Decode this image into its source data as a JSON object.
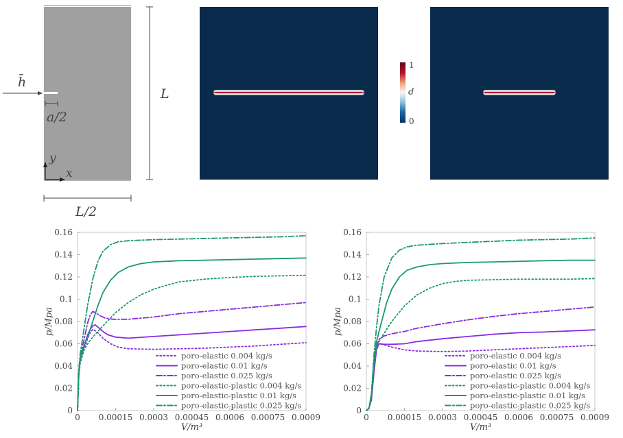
{
  "schematic": {
    "flux_label": "h̄",
    "notch_label": "a/2",
    "height_label": "L",
    "width_label": "L/2",
    "x_axis_label": "x",
    "y_axis_label": "y"
  },
  "colorbar": {
    "max": "1",
    "min": "0",
    "label": "d"
  },
  "colors": {
    "field_background": "#0a2a4c",
    "crack_core": "#b2182b",
    "poro_elastic": "#8a2be2",
    "poro_elastic_plastic": "#1a9a6a",
    "specimen_gray": "#a0a0a0"
  },
  "chart_data": [
    {
      "type": "line",
      "xlabel": "V/m³",
      "ylabel": "p/Mpa",
      "xlim": [
        0,
        0.0009
      ],
      "ylim": [
        0,
        0.16
      ],
      "xticks": [
        "0",
        "0.00015",
        "0.0003",
        "0.00045",
        "0.0006",
        "0.00075",
        "0.0009"
      ],
      "yticks": [
        "0",
        "0.02",
        "0.04",
        "0.06",
        "0.08",
        "0.1",
        "0.12",
        "0.14",
        "0.16"
      ],
      "legend_position": "bottom-right",
      "series": [
        {
          "name": "poro-elastic 0.004 kg/s",
          "color": "#8a2be2",
          "dash": "dotted",
          "points": [
            [
              0,
              0
            ],
            [
              5e-06,
              0.03
            ],
            [
              1e-05,
              0.042
            ],
            [
              2e-05,
              0.05
            ],
            [
              3e-05,
              0.058
            ],
            [
              4e-05,
              0.065
            ],
            [
              5e-05,
              0.07
            ],
            [
              6e-05,
              0.073
            ],
            [
              8e-05,
              0.07
            ],
            [
              0.0001,
              0.065
            ],
            [
              0.00013,
              0.06
            ],
            [
              0.00016,
              0.057
            ],
            [
              0.0002,
              0.0555
            ],
            [
              0.0003,
              0.055
            ],
            [
              0.0004,
              0.0555
            ],
            [
              0.0005,
              0.056
            ],
            [
              0.0006,
              0.057
            ],
            [
              0.0007,
              0.058
            ],
            [
              0.0008,
              0.0595
            ],
            [
              0.0009,
              0.061
            ]
          ]
        },
        {
          "name": "poro-elastic 0.01 kg/s",
          "color": "#8a2be2",
          "dash": "solid",
          "points": [
            [
              0,
              0
            ],
            [
              5e-06,
              0.032
            ],
            [
              1e-05,
              0.045
            ],
            [
              2e-05,
              0.053
            ],
            [
              3e-05,
              0.061
            ],
            [
              4e-05,
              0.068
            ],
            [
              5e-05,
              0.073
            ],
            [
              6e-05,
              0.076
            ],
            [
              7e-05,
              0.077
            ],
            [
              8e-05,
              0.075
            ],
            [
              0.0001,
              0.071
            ],
            [
              0.00012,
              0.068
            ],
            [
              0.00015,
              0.066
            ],
            [
              0.0002,
              0.065
            ],
            [
              0.0003,
              0.0665
            ],
            [
              0.0004,
              0.068
            ],
            [
              0.0005,
              0.0695
            ],
            [
              0.0006,
              0.071
            ],
            [
              0.0007,
              0.0725
            ],
            [
              0.0008,
              0.074
            ],
            [
              0.0009,
              0.0755
            ]
          ]
        },
        {
          "name": "poro-elastic 0.025 kg/s",
          "color": "#8a2be2",
          "dash": "dashdot",
          "points": [
            [
              0,
              0
            ],
            [
              5e-06,
              0.035
            ],
            [
              1e-05,
              0.048
            ],
            [
              2e-05,
              0.058
            ],
            [
              3e-05,
              0.068
            ],
            [
              4e-05,
              0.079
            ],
            [
              5e-05,
              0.086
            ],
            [
              6e-05,
              0.089
            ],
            [
              7e-05,
              0.088
            ],
            [
              9e-05,
              0.085
            ],
            [
              0.00011,
              0.083
            ],
            [
              0.00014,
              0.082
            ],
            [
              0.0002,
              0.082
            ],
            [
              0.0003,
              0.084
            ],
            [
              0.0004,
              0.087
            ],
            [
              0.0005,
              0.089
            ],
            [
              0.0006,
              0.091
            ],
            [
              0.0007,
              0.093
            ],
            [
              0.0008,
              0.095
            ],
            [
              0.0009,
              0.097
            ]
          ]
        },
        {
          "name": "poro-elastic-plastic 0.004 kg/s",
          "color": "#1a9a6a",
          "dash": "dotted",
          "points": [
            [
              0,
              0
            ],
            [
              5e-06,
              0.03
            ],
            [
              1e-05,
              0.043
            ],
            [
              2e-05,
              0.052
            ],
            [
              4e-05,
              0.06
            ],
            [
              6e-05,
              0.066
            ],
            [
              0.0001,
              0.076
            ],
            [
              0.00015,
              0.088
            ],
            [
              0.0002,
              0.097
            ],
            [
              0.00025,
              0.104
            ],
            [
              0.0003,
              0.109
            ],
            [
              0.00035,
              0.1125
            ],
            [
              0.0004,
              0.1155
            ],
            [
              0.0005,
              0.118
            ],
            [
              0.0006,
              0.1195
            ],
            [
              0.0007,
              0.1205
            ],
            [
              0.0008,
              0.121
            ],
            [
              0.0009,
              0.1215
            ]
          ]
        },
        {
          "name": "poro-elastic-plastic 0.01 kg/s",
          "color": "#1a9a6a",
          "dash": "solid",
          "points": [
            [
              0,
              0
            ],
            [
              5e-06,
              0.032
            ],
            [
              1e-05,
              0.045
            ],
            [
              2e-05,
              0.055
            ],
            [
              4e-05,
              0.066
            ],
            [
              6e-05,
              0.08
            ],
            [
              8e-05,
              0.094
            ],
            [
              0.0001,
              0.106
            ],
            [
              0.00013,
              0.117
            ],
            [
              0.00016,
              0.124
            ],
            [
              0.0002,
              0.129
            ],
            [
              0.00025,
              0.132
            ],
            [
              0.0003,
              0.1335
            ],
            [
              0.0004,
              0.1345
            ],
            [
              0.0005,
              0.135
            ],
            [
              0.0006,
              0.1355
            ],
            [
              0.0007,
              0.136
            ],
            [
              0.0008,
              0.1365
            ],
            [
              0.0009,
              0.137
            ]
          ]
        },
        {
          "name": "poro-elastic-plastic 0.025 kg/s",
          "color": "#1a9a6a",
          "dash": "dashdot",
          "points": [
            [
              0,
              0
            ],
            [
              5e-06,
              0.035
            ],
            [
              1e-05,
              0.05
            ],
            [
              2e-05,
              0.065
            ],
            [
              3e-05,
              0.08
            ],
            [
              4e-05,
              0.095
            ],
            [
              6e-05,
              0.118
            ],
            [
              8e-05,
              0.134
            ],
            [
              0.0001,
              0.143
            ],
            [
              0.00013,
              0.149
            ],
            [
              0.00016,
              0.1515
            ],
            [
              0.0002,
              0.1525
            ],
            [
              0.0003,
              0.1535
            ],
            [
              0.0004,
              0.154
            ],
            [
              0.0005,
              0.1545
            ],
            [
              0.0006,
              0.155
            ],
            [
              0.0007,
              0.1555
            ],
            [
              0.0008,
              0.156
            ],
            [
              0.0009,
              0.157
            ]
          ]
        }
      ]
    },
    {
      "type": "line",
      "xlabel": "V/m³",
      "ylabel": "p/Mpa",
      "xlim": [
        0,
        0.0009
      ],
      "ylim": [
        0,
        0.16
      ],
      "xticks": [
        "0",
        "0.00015",
        "0.0003",
        "0.00045",
        "0.0006",
        "0.00075",
        "0.0009"
      ],
      "yticks": [
        "0",
        "0.02",
        "0.04",
        "0.06",
        "0.08",
        "0.1",
        "0.12",
        "0.14",
        "0.16"
      ],
      "legend_position": "bottom-right",
      "series": [
        {
          "name": "poro-elastic 0.004 kg/s",
          "color": "#8a2be2",
          "dash": "dotted",
          "points": [
            [
              0,
              0
            ],
            [
              1e-05,
              0.002
            ],
            [
              2e-05,
              0.01
            ],
            [
              3e-05,
              0.035
            ],
            [
              4e-05,
              0.055
            ],
            [
              5e-05,
              0.06
            ],
            [
              7e-05,
              0.059
            ],
            [
              0.0001,
              0.057
            ],
            [
              0.00015,
              0.0545
            ],
            [
              0.0002,
              0.0535
            ],
            [
              0.0003,
              0.053
            ],
            [
              0.0004,
              0.0535
            ],
            [
              0.0005,
              0.0545
            ],
            [
              0.0006,
              0.0555
            ],
            [
              0.0007,
              0.0565
            ],
            [
              0.0008,
              0.0575
            ],
            [
              0.0009,
              0.0585
            ]
          ]
        },
        {
          "name": "poro-elastic 0.01 kg/s",
          "color": "#8a2be2",
          "dash": "solid",
          "points": [
            [
              0,
              0
            ],
            [
              1e-05,
              0.002
            ],
            [
              2e-05,
              0.01
            ],
            [
              3e-05,
              0.035
            ],
            [
              4e-05,
              0.055
            ],
            [
              5e-05,
              0.06
            ],
            [
              7e-05,
              0.0595
            ],
            [
              0.0001,
              0.0595
            ],
            [
              0.00015,
              0.06
            ],
            [
              0.0002,
              0.062
            ],
            [
              0.0003,
              0.0645
            ],
            [
              0.0004,
              0.0665
            ],
            [
              0.0005,
              0.0685
            ],
            [
              0.0006,
              0.07
            ],
            [
              0.0007,
              0.0705
            ],
            [
              0.0008,
              0.0715
            ],
            [
              0.0009,
              0.0725
            ]
          ]
        },
        {
          "name": "poro-elastic 0.025 kg/s",
          "color": "#8a2be2",
          "dash": "dashdot",
          "points": [
            [
              0,
              0
            ],
            [
              1e-05,
              0.002
            ],
            [
              2e-05,
              0.012
            ],
            [
              3e-05,
              0.04
            ],
            [
              4e-05,
              0.058
            ],
            [
              5e-05,
              0.064
            ],
            [
              7e-05,
              0.067
            ],
            [
              0.0001,
              0.069
            ],
            [
              0.00015,
              0.071
            ],
            [
              0.0002,
              0.074
            ],
            [
              0.0003,
              0.078
            ],
            [
              0.0004,
              0.0815
            ],
            [
              0.0005,
              0.0845
            ],
            [
              0.0006,
              0.087
            ],
            [
              0.0007,
              0.089
            ],
            [
              0.0008,
              0.091
            ],
            [
              0.0009,
              0.093
            ]
          ]
        },
        {
          "name": "poro-elastic-plastic 0.004 kg/s",
          "color": "#1a9a6a",
          "dash": "dotted",
          "points": [
            [
              0,
              0
            ],
            [
              1e-05,
              0.002
            ],
            [
              2e-05,
              0.012
            ],
            [
              3e-05,
              0.04
            ],
            [
              4e-05,
              0.058
            ],
            [
              6e-05,
              0.066
            ],
            [
              0.0001,
              0.08
            ],
            [
              0.00015,
              0.094
            ],
            [
              0.0002,
              0.104
            ],
            [
              0.00025,
              0.11
            ],
            [
              0.0003,
              0.114
            ],
            [
              0.00035,
              0.116
            ],
            [
              0.0004,
              0.117
            ],
            [
              0.0005,
              0.1175
            ],
            [
              0.0006,
              0.118
            ],
            [
              0.0007,
              0.118
            ],
            [
              0.0008,
              0.118
            ],
            [
              0.0009,
              0.1185
            ]
          ]
        },
        {
          "name": "poro-elastic-plastic 0.01 kg/s",
          "color": "#1a9a6a",
          "dash": "solid",
          "points": [
            [
              0,
              0
            ],
            [
              1e-05,
              0.002
            ],
            [
              2e-05,
              0.014
            ],
            [
              3e-05,
              0.045
            ],
            [
              4e-05,
              0.062
            ],
            [
              6e-05,
              0.08
            ],
            [
              8e-05,
              0.097
            ],
            [
              0.0001,
              0.109
            ],
            [
              0.00013,
              0.12
            ],
            [
              0.00016,
              0.126
            ],
            [
              0.0002,
              0.129
            ],
            [
              0.00025,
              0.131
            ],
            [
              0.0003,
              0.132
            ],
            [
              0.0004,
              0.133
            ],
            [
              0.0005,
              0.1335
            ],
            [
              0.0006,
              0.134
            ],
            [
              0.0007,
              0.1345
            ],
            [
              0.0008,
              0.135
            ],
            [
              0.0009,
              0.135
            ]
          ]
        },
        {
          "name": "poro-elastic-plastic 0.025 kg/s",
          "color": "#1a9a6a",
          "dash": "dashdot",
          "points": [
            [
              0,
              0
            ],
            [
              1e-05,
              0.002
            ],
            [
              2e-05,
              0.016
            ],
            [
              3e-05,
              0.05
            ],
            [
              4e-05,
              0.075
            ],
            [
              5e-05,
              0.095
            ],
            [
              7e-05,
              0.12
            ],
            [
              0.0001,
              0.137
            ],
            [
              0.00013,
              0.144
            ],
            [
              0.00016,
              0.147
            ],
            [
              0.0002,
              0.1485
            ],
            [
              0.0003,
              0.15
            ],
            [
              0.0004,
              0.151
            ],
            [
              0.0005,
              0.152
            ],
            [
              0.0006,
              0.153
            ],
            [
              0.0007,
              0.1535
            ],
            [
              0.0008,
              0.154
            ],
            [
              0.0009,
              0.155
            ]
          ]
        }
      ]
    }
  ]
}
